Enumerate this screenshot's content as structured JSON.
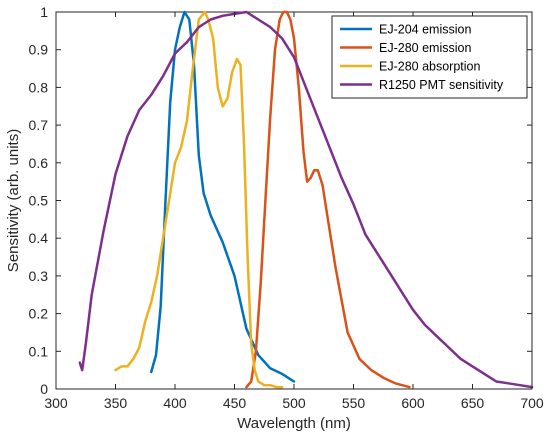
{
  "chart_data": {
    "type": "line",
    "title": "",
    "xlabel": "Wavelength (nm)",
    "ylabel": "Sensitivity (arb. units)",
    "xlim": [
      300,
      700
    ],
    "ylim": [
      0,
      1
    ],
    "xticks": [
      300,
      350,
      400,
      450,
      500,
      550,
      600,
      650,
      700
    ],
    "yticks": [
      0,
      0.1,
      0.2,
      0.3,
      0.4,
      0.5,
      0.6,
      0.7,
      0.8,
      0.9,
      1
    ],
    "grid": false,
    "legend_position": "top-right",
    "series": [
      {
        "name": "EJ-204 emission",
        "color": "#0072BD",
        "x": [
          380,
          384,
          388,
          392,
          396,
          400,
          404,
          408,
          412,
          416,
          420,
          424,
          430,
          440,
          450,
          460,
          470,
          480,
          490,
          500
        ],
        "y": [
          0.045,
          0.09,
          0.22,
          0.5,
          0.76,
          0.9,
          0.96,
          1.0,
          0.98,
          0.86,
          0.62,
          0.52,
          0.46,
          0.39,
          0.3,
          0.16,
          0.09,
          0.055,
          0.04,
          0.02
        ]
      },
      {
        "name": "EJ-280 emission",
        "color": "#D95319",
        "x": [
          460,
          464,
          468,
          472,
          476,
          480,
          484,
          488,
          491,
          494,
          497,
          500,
          504,
          508,
          511,
          514,
          517,
          520,
          524,
          528,
          535,
          545,
          555,
          565,
          575,
          585,
          597
        ],
        "y": [
          0.005,
          0.02,
          0.1,
          0.28,
          0.5,
          0.72,
          0.9,
          0.98,
          1.0,
          1.0,
          0.98,
          0.93,
          0.8,
          0.63,
          0.55,
          0.56,
          0.58,
          0.58,
          0.54,
          0.46,
          0.32,
          0.15,
          0.08,
          0.05,
          0.03,
          0.015,
          0.005
        ]
      },
      {
        "name": "EJ-280 absorption",
        "color": "#EDB120",
        "x": [
          350,
          355,
          360,
          365,
          370,
          375,
          380,
          385,
          390,
          395,
          400,
          405,
          410,
          415,
          420,
          425,
          428,
          432,
          436,
          440,
          444,
          448,
          452,
          455,
          458,
          461,
          464,
          467,
          470,
          475,
          480,
          485,
          490
        ],
        "y": [
          0.05,
          0.06,
          0.06,
          0.08,
          0.11,
          0.18,
          0.23,
          0.3,
          0.4,
          0.5,
          0.6,
          0.64,
          0.71,
          0.85,
          0.98,
          1.0,
          0.98,
          0.93,
          0.8,
          0.75,
          0.77,
          0.84,
          0.875,
          0.86,
          0.65,
          0.35,
          0.12,
          0.05,
          0.02,
          0.01,
          0.01,
          0.005,
          0.005
        ]
      },
      {
        "name": "R1250 PMT sensitivity",
        "color": "#7E2F8E",
        "x": [
          320,
          322,
          325,
          330,
          340,
          350,
          360,
          370,
          380,
          390,
          400,
          410,
          420,
          430,
          440,
          450,
          460,
          470,
          480,
          490,
          500,
          510,
          520,
          530,
          540,
          550,
          560,
          570,
          580,
          590,
          600,
          610,
          620,
          630,
          640,
          650,
          660,
          670,
          680,
          690,
          700
        ],
        "y": [
          0.07,
          0.05,
          0.12,
          0.25,
          0.42,
          0.57,
          0.67,
          0.74,
          0.78,
          0.83,
          0.89,
          0.92,
          0.96,
          0.98,
          0.99,
          0.995,
          1.0,
          0.98,
          0.96,
          0.93,
          0.88,
          0.8,
          0.72,
          0.64,
          0.56,
          0.49,
          0.41,
          0.36,
          0.31,
          0.26,
          0.21,
          0.17,
          0.14,
          0.11,
          0.08,
          0.06,
          0.04,
          0.02,
          0.015,
          0.01,
          0.005
        ]
      }
    ]
  }
}
